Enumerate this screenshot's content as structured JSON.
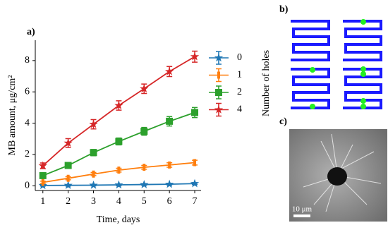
{
  "chart_data": {
    "type": "line",
    "x_label": "Time, days",
    "y_label": "MB amount, μg/cm²",
    "x": [
      1,
      2,
      3,
      4,
      5,
      6,
      7
    ],
    "series": [
      {
        "name": "0",
        "color": "#1f77b4",
        "marker": "star",
        "values": [
          0.02,
          0.03,
          0.04,
          0.06,
          0.08,
          0.1,
          0.14
        ],
        "errors": [
          0.04,
          0.04,
          0.04,
          0.05,
          0.05,
          0.05,
          0.06
        ]
      },
      {
        "name": "1",
        "color": "#ff7f0e",
        "marker": "tick",
        "values": [
          0.22,
          0.48,
          0.75,
          1.0,
          1.18,
          1.33,
          1.48
        ],
        "errors": [
          0.08,
          0.1,
          0.1,
          0.12,
          0.12,
          0.14,
          0.15
        ]
      },
      {
        "name": "2",
        "color": "#2ca02c",
        "marker": "square",
        "values": [
          0.65,
          1.3,
          2.12,
          2.83,
          3.48,
          4.12,
          4.68
        ],
        "errors": [
          0.12,
          0.15,
          0.2,
          0.22,
          0.25,
          0.3,
          0.32
        ]
      },
      {
        "name": "4",
        "color": "#d62728",
        "marker": "star",
        "values": [
          1.28,
          2.73,
          3.93,
          5.13,
          6.2,
          7.3,
          8.25
        ],
        "errors": [
          0.18,
          0.28,
          0.3,
          0.3,
          0.3,
          0.32,
          0.35
        ]
      }
    ],
    "legend_title": "Number of holes",
    "xlim": [
      0.7,
      7.25
    ],
    "ylim": [
      -0.3,
      9.3
    ],
    "xticks": [
      1,
      2,
      3,
      4,
      5,
      6,
      7
    ],
    "yticks": [
      0,
      2,
      4,
      6,
      8
    ]
  },
  "panel_labels": [
    "a)",
    "b)",
    "c)"
  ],
  "scale_bar": "10 μm"
}
